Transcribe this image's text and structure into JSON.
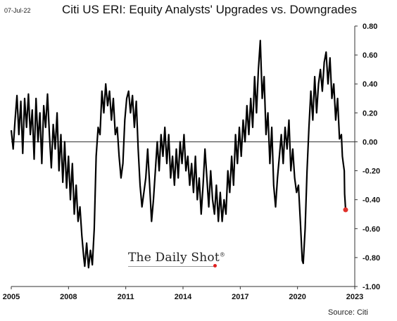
{
  "header": {
    "date": "07-Jul-22",
    "title": "Citi US ERI: Equity Analysts' Upgrades vs. Downgrades"
  },
  "footer": {
    "source": "Source: Citi"
  },
  "watermark": {
    "text": "The Daily Shot",
    "mark": "®"
  },
  "chart_data": {
    "type": "line",
    "title": "Citi US ERI: Equity Analysts' Upgrades vs. Downgrades",
    "xlabel": "",
    "ylabel": "",
    "xlim": [
      2005.0,
      2023.0
    ],
    "ylim": [
      -1.0,
      0.8
    ],
    "x_ticks": [
      {
        "value": 2005,
        "label": "2005"
      },
      {
        "value": 2008,
        "label": "2008"
      },
      {
        "value": 2011,
        "label": "2011"
      },
      {
        "value": 2014,
        "label": "2014"
      },
      {
        "value": 2017,
        "label": "2017"
      },
      {
        "value": 2020,
        "label": "2020"
      },
      {
        "value": 2023,
        "label": "2023"
      }
    ],
    "y_ticks": [
      {
        "value": 0.8,
        "label": "0.80"
      },
      {
        "value": 0.6,
        "label": "0.60"
      },
      {
        "value": 0.4,
        "label": "0.40"
      },
      {
        "value": 0.2,
        "label": "0.20"
      },
      {
        "value": 0.0,
        "label": "0.00"
      },
      {
        "value": -0.2,
        "label": "-0.20"
      },
      {
        "value": -0.4,
        "label": "-0.40"
      },
      {
        "value": -0.6,
        "label": "-0.60"
      },
      {
        "value": -0.8,
        "label": "-0.80"
      },
      {
        "value": -1.0,
        "label": "-1.00"
      }
    ],
    "grid": false,
    "zero_line": true,
    "series": [
      {
        "color": "#000000",
        "points": [
          [
            2005.0,
            0.08
          ],
          [
            2005.1,
            -0.05
          ],
          [
            2005.2,
            0.15
          ],
          [
            2005.3,
            0.32
          ],
          [
            2005.4,
            0.05
          ],
          [
            2005.5,
            0.28
          ],
          [
            2005.6,
            -0.08
          ],
          [
            2005.7,
            0.3
          ],
          [
            2005.8,
            0.1
          ],
          [
            2005.9,
            0.33
          ],
          [
            2006.0,
            0.05
          ],
          [
            2006.1,
            0.22
          ],
          [
            2006.2,
            -0.12
          ],
          [
            2006.3,
            0.3
          ],
          [
            2006.4,
            0.0
          ],
          [
            2006.5,
            0.2
          ],
          [
            2006.6,
            -0.15
          ],
          [
            2006.7,
            0.25
          ],
          [
            2006.8,
            0.1
          ],
          [
            2006.9,
            0.33
          ],
          [
            2007.0,
            0.05
          ],
          [
            2007.1,
            -0.18
          ],
          [
            2007.2,
            0.12
          ],
          [
            2007.3,
            -0.05
          ],
          [
            2007.4,
            0.2
          ],
          [
            2007.5,
            -0.2
          ],
          [
            2007.6,
            0.05
          ],
          [
            2007.7,
            -0.28
          ],
          [
            2007.8,
            0.0
          ],
          [
            2007.9,
            -0.32
          ],
          [
            2008.0,
            -0.1
          ],
          [
            2008.1,
            -0.4
          ],
          [
            2008.2,
            -0.15
          ],
          [
            2008.3,
            -0.5
          ],
          [
            2008.4,
            -0.3
          ],
          [
            2008.5,
            -0.55
          ],
          [
            2008.6,
            -0.45
          ],
          [
            2008.7,
            -0.65
          ],
          [
            2008.8,
            -0.8
          ],
          [
            2008.85,
            -0.86
          ],
          [
            2008.95,
            -0.7
          ],
          [
            2009.05,
            -0.87
          ],
          [
            2009.15,
            -0.75
          ],
          [
            2009.25,
            -0.85
          ],
          [
            2009.35,
            -0.6
          ],
          [
            2009.45,
            -0.1
          ],
          [
            2009.55,
            0.1
          ],
          [
            2009.65,
            0.05
          ],
          [
            2009.75,
            0.35
          ],
          [
            2009.85,
            0.2
          ],
          [
            2009.95,
            0.4
          ],
          [
            2010.05,
            0.25
          ],
          [
            2010.15,
            0.35
          ],
          [
            2010.25,
            0.15
          ],
          [
            2010.35,
            0.3
          ],
          [
            2010.45,
            0.05
          ],
          [
            2010.55,
            0.1
          ],
          [
            2010.65,
            -0.1
          ],
          [
            2010.75,
            -0.25
          ],
          [
            2010.85,
            -0.15
          ],
          [
            2010.95,
            0.15
          ],
          [
            2011.05,
            0.3
          ],
          [
            2011.15,
            0.35
          ],
          [
            2011.25,
            0.2
          ],
          [
            2011.35,
            0.32
          ],
          [
            2011.45,
            0.1
          ],
          [
            2011.55,
            0.28
          ],
          [
            2011.65,
            -0.05
          ],
          [
            2011.75,
            -0.3
          ],
          [
            2011.85,
            -0.45
          ],
          [
            2011.95,
            -0.35
          ],
          [
            2012.05,
            -0.25
          ],
          [
            2012.15,
            -0.05
          ],
          [
            2012.25,
            -0.3
          ],
          [
            2012.35,
            -0.55
          ],
          [
            2012.45,
            -0.4
          ],
          [
            2012.55,
            -0.2
          ],
          [
            2012.65,
            0.0
          ],
          [
            2012.75,
            -0.2
          ],
          [
            2012.85,
            0.05
          ],
          [
            2012.95,
            -0.1
          ],
          [
            2013.05,
            0.1
          ],
          [
            2013.15,
            -0.15
          ],
          [
            2013.25,
            0.05
          ],
          [
            2013.35,
            -0.25
          ],
          [
            2013.45,
            -0.1
          ],
          [
            2013.55,
            -0.3
          ],
          [
            2013.65,
            -0.05
          ],
          [
            2013.75,
            -0.25
          ],
          [
            2013.85,
            0.0
          ],
          [
            2013.95,
            -0.15
          ],
          [
            2014.05,
            0.05
          ],
          [
            2014.15,
            -0.2
          ],
          [
            2014.25,
            -0.1
          ],
          [
            2014.35,
            -0.3
          ],
          [
            2014.45,
            -0.15
          ],
          [
            2014.55,
            -0.35
          ],
          [
            2014.65,
            -0.1
          ],
          [
            2014.75,
            -0.4
          ],
          [
            2014.85,
            -0.25
          ],
          [
            2014.95,
            -0.5
          ],
          [
            2015.05,
            -0.3
          ],
          [
            2015.15,
            -0.05
          ],
          [
            2015.25,
            -0.25
          ],
          [
            2015.35,
            -0.45
          ],
          [
            2015.45,
            -0.2
          ],
          [
            2015.55,
            -0.4
          ],
          [
            2015.65,
            -0.5
          ],
          [
            2015.75,
            -0.3
          ],
          [
            2015.85,
            -0.55
          ],
          [
            2015.95,
            -0.35
          ],
          [
            2016.05,
            -0.55
          ],
          [
            2016.15,
            -0.4
          ],
          [
            2016.25,
            -0.5
          ],
          [
            2016.35,
            -0.2
          ],
          [
            2016.45,
            -0.35
          ],
          [
            2016.55,
            -0.1
          ],
          [
            2016.65,
            -0.3
          ],
          [
            2016.75,
            0.05
          ],
          [
            2016.85,
            -0.15
          ],
          [
            2016.95,
            0.1
          ],
          [
            2017.05,
            -0.1
          ],
          [
            2017.15,
            0.15
          ],
          [
            2017.25,
            0.0
          ],
          [
            2017.35,
            0.25
          ],
          [
            2017.45,
            0.05
          ],
          [
            2017.55,
            0.3
          ],
          [
            2017.65,
            0.1
          ],
          [
            2017.75,
            0.45
          ],
          [
            2017.85,
            0.2
          ],
          [
            2017.95,
            0.5
          ],
          [
            2018.05,
            0.7
          ],
          [
            2018.15,
            0.3
          ],
          [
            2018.25,
            0.45
          ],
          [
            2018.35,
            0.05
          ],
          [
            2018.45,
            0.2
          ],
          [
            2018.55,
            -0.15
          ],
          [
            2018.65,
            0.1
          ],
          [
            2018.75,
            -0.3
          ],
          [
            2018.85,
            -0.45
          ],
          [
            2018.95,
            -0.25
          ],
          [
            2019.05,
            -0.1
          ],
          [
            2019.15,
            0.05
          ],
          [
            2019.25,
            -0.15
          ],
          [
            2019.35,
            0.1
          ],
          [
            2019.45,
            -0.05
          ],
          [
            2019.55,
            0.15
          ],
          [
            2019.65,
            -0.2
          ],
          [
            2019.75,
            -0.05
          ],
          [
            2019.85,
            -0.25
          ],
          [
            2019.95,
            -0.35
          ],
          [
            2020.05,
            -0.3
          ],
          [
            2020.15,
            -0.55
          ],
          [
            2020.25,
            -0.82
          ],
          [
            2020.3,
            -0.84
          ],
          [
            2020.4,
            -0.6
          ],
          [
            2020.5,
            -0.2
          ],
          [
            2020.6,
            0.1
          ],
          [
            2020.7,
            0.35
          ],
          [
            2020.8,
            0.15
          ],
          [
            2020.9,
            0.45
          ],
          [
            2021.0,
            0.2
          ],
          [
            2021.1,
            0.4
          ],
          [
            2021.2,
            0.5
          ],
          [
            2021.3,
            0.35
          ],
          [
            2021.4,
            0.55
          ],
          [
            2021.5,
            0.62
          ],
          [
            2021.6,
            0.4
          ],
          [
            2021.7,
            0.58
          ],
          [
            2021.8,
            0.3
          ],
          [
            2021.9,
            0.4
          ],
          [
            2022.0,
            0.15
          ],
          [
            2022.1,
            0.3
          ],
          [
            2022.2,
            0.02
          ],
          [
            2022.3,
            0.05
          ],
          [
            2022.35,
            -0.1
          ],
          [
            2022.4,
            -0.15
          ],
          [
            2022.45,
            -0.2
          ],
          [
            2022.47,
            -0.36
          ],
          [
            2022.52,
            -0.47
          ]
        ]
      }
    ],
    "last_point": {
      "x": 2022.52,
      "y": -0.47,
      "color": "#e0302a"
    }
  }
}
